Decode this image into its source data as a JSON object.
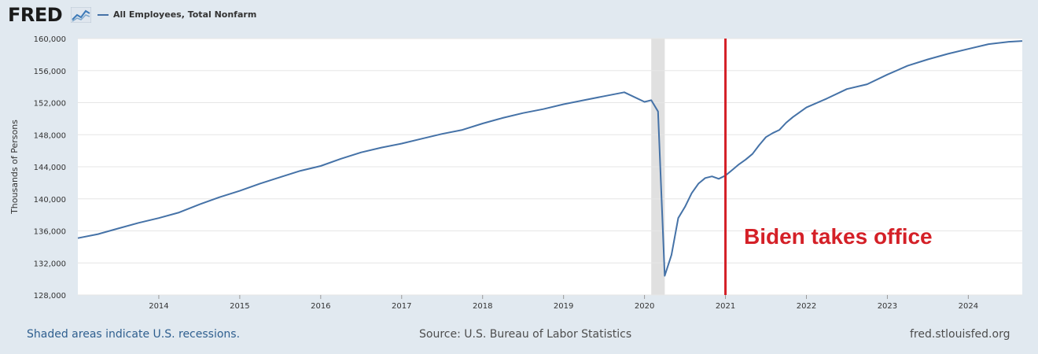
{
  "header": {
    "logo_text": "FRED",
    "logo_icon": "line-chart-icon"
  },
  "legend": {
    "series_label": "All Employees, Total Nonfarm"
  },
  "annotation": {
    "text": "Biden takes office",
    "date": "2021-01",
    "color": "#d42027"
  },
  "footer": {
    "recession_note": "Shaded areas indicate U.S. recessions.",
    "source": "Source: U.S. Bureau of Labor Statistics",
    "site": "fred.stlouisfed.org"
  },
  "chart_data": {
    "type": "line",
    "title": "",
    "xlabel": "",
    "ylabel": "Thousands of Persons",
    "xlim": [
      "2013-01",
      "2024-09"
    ],
    "ylim": [
      128000,
      160000
    ],
    "x_ticks": [
      "2014",
      "2015",
      "2016",
      "2017",
      "2018",
      "2019",
      "2020",
      "2021",
      "2022",
      "2023",
      "2024"
    ],
    "y_ticks": [
      128000,
      132000,
      136000,
      140000,
      144000,
      148000,
      152000,
      156000,
      160000
    ],
    "y_tick_labels": [
      "128,000",
      "132,000",
      "136,000",
      "140,000",
      "144,000",
      "148,000",
      "152,000",
      "156,000",
      "160,000"
    ],
    "grid": true,
    "line_color": "#4572a7",
    "recession_shading": [
      {
        "start": "2020-02",
        "end": "2020-04",
        "color": "#e0e0e0"
      }
    ],
    "series": [
      {
        "name": "All Employees, Total Nonfarm",
        "x": [
          "2013-01",
          "2013-04",
          "2013-07",
          "2013-10",
          "2014-01",
          "2014-04",
          "2014-07",
          "2014-10",
          "2015-01",
          "2015-04",
          "2015-07",
          "2015-10",
          "2016-01",
          "2016-04",
          "2016-07",
          "2016-10",
          "2017-01",
          "2017-04",
          "2017-07",
          "2017-10",
          "2018-01",
          "2018-04",
          "2018-07",
          "2018-10",
          "2019-01",
          "2019-04",
          "2019-07",
          "2019-10",
          "2020-01",
          "2020-02",
          "2020-03",
          "2020-04",
          "2020-05",
          "2020-06",
          "2020-07",
          "2020-08",
          "2020-09",
          "2020-10",
          "2020-11",
          "2020-12",
          "2021-01",
          "2021-02",
          "2021-03",
          "2021-04",
          "2021-05",
          "2021-06",
          "2021-07",
          "2021-08",
          "2021-09",
          "2021-10",
          "2021-11",
          "2021-12",
          "2022-01",
          "2022-04",
          "2022-07",
          "2022-10",
          "2023-01",
          "2023-04",
          "2023-07",
          "2023-10",
          "2024-01",
          "2024-04",
          "2024-07",
          "2024-09"
        ],
        "values": [
          135100,
          135600,
          136300,
          137000,
          137600,
          138300,
          139300,
          140200,
          141000,
          141900,
          142700,
          143500,
          144100,
          145000,
          145800,
          146400,
          146900,
          147500,
          148100,
          148600,
          149400,
          150100,
          150700,
          151200,
          151800,
          152300,
          152800,
          153300,
          152100,
          152300,
          150900,
          130400,
          133000,
          137600,
          139000,
          140700,
          141900,
          142600,
          142800,
          142500,
          142900,
          143600,
          144300,
          144900,
          145600,
          146700,
          147700,
          148200,
          148600,
          149500,
          150200,
          150800,
          151400,
          152500,
          153700,
          154300,
          155500,
          156600,
          157400,
          158100,
          158700,
          159300,
          159600,
          159700
        ]
      }
    ]
  }
}
